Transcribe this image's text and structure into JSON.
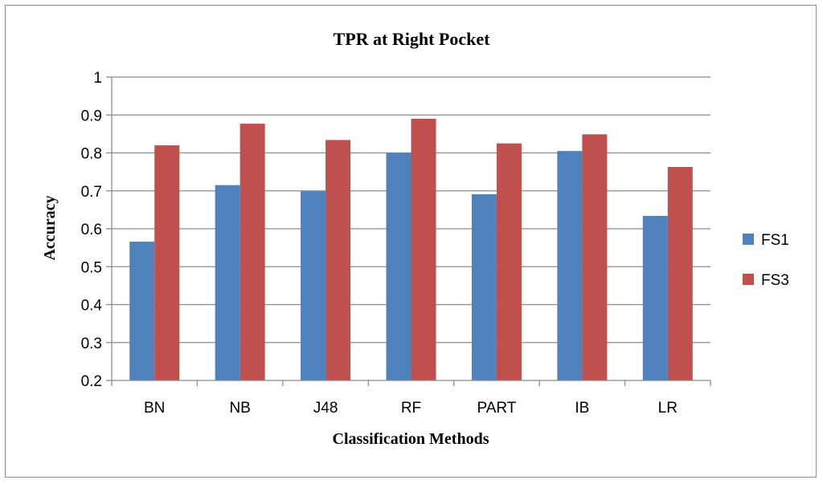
{
  "chart_data": {
    "type": "bar",
    "title": "TPR at Right Pocket",
    "xlabel": "Classification Methods",
    "ylabel": "Accuracy",
    "ylim": [
      0.2,
      1
    ],
    "yticks": [
      "0.2",
      "0.3",
      "0.4",
      "0.5",
      "0.6",
      "0.7",
      "0.8",
      "0.9",
      "1"
    ],
    "categories": [
      "BN",
      "NB",
      "J48",
      "RF",
      "PART",
      "IB",
      "LR"
    ],
    "series": [
      {
        "name": "FS1",
        "color": "#4f81bd",
        "values": [
          0.566,
          0.715,
          0.699,
          0.8,
          0.691,
          0.805,
          0.634
        ]
      },
      {
        "name": "FS3",
        "color": "#c0504d",
        "values": [
          0.82,
          0.877,
          0.834,
          0.89,
          0.825,
          0.849,
          0.763
        ]
      }
    ],
    "grid": true,
    "legend_position": "right"
  }
}
